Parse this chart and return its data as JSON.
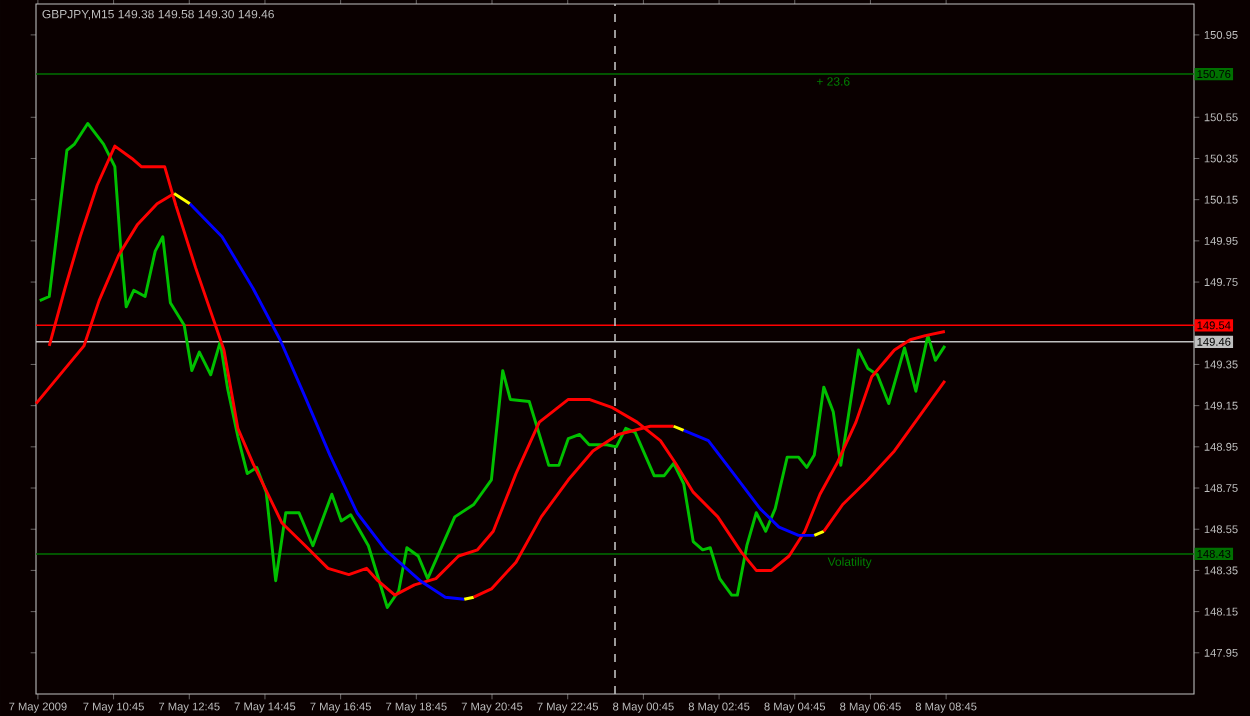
{
  "chart_data": {
    "type": "line",
    "title": "GBPJPY,M15  149.38 149.58 149.30 149.46",
    "line_style": "solid",
    "xlim": [
      "2009-05-07T08:42",
      "2009-05-08T15:18"
    ],
    "ylim": [
      147.75,
      151.1
    ],
    "xticks": [
      {
        "value": "2009-05-07T08:45",
        "label": "7 May 2009"
      },
      {
        "value": "2009-05-07T10:45",
        "label": "7 May 10:45"
      },
      {
        "value": "2009-05-07T12:45",
        "label": "7 May 12:45"
      },
      {
        "value": "2009-05-07T14:45",
        "label": "7 May 14:45"
      },
      {
        "value": "2009-05-07T16:45",
        "label": "7 May 16:45"
      },
      {
        "value": "2009-05-07T18:45",
        "label": "7 May 18:45"
      },
      {
        "value": "2009-05-07T20:45",
        "label": "7 May 20:45"
      },
      {
        "value": "2009-05-07T22:45",
        "label": "7 May 22:45"
      },
      {
        "value": "2009-05-08T00:45",
        "label": "8 May 00:45"
      },
      {
        "value": "2009-05-08T02:45",
        "label": "8 May 02:45"
      },
      {
        "value": "2009-05-08T04:45",
        "label": "8 May 04:45"
      },
      {
        "value": "2009-05-08T06:45",
        "label": "8 May 06:45"
      },
      {
        "value": "2009-05-08T08:45",
        "label": "8 May 08:45"
      }
    ],
    "yticks": [
      147.95,
      148.15,
      148.35,
      148.55,
      148.75,
      148.95,
      149.15,
      149.35,
      149.75,
      149.95,
      150.15,
      150.35,
      150.55,
      150.95
    ],
    "ref_lines": [
      {
        "axis": "y",
        "value": 150.76,
        "label": "150.76",
        "color": "#007000"
      },
      {
        "axis": "y",
        "value": 149.54,
        "label": "149.54",
        "color": "#ff0000"
      },
      {
        "axis": "y",
        "value": 149.46,
        "label": "149.46",
        "color": "#c0c0c0"
      },
      {
        "axis": "y",
        "value": 148.43,
        "label": "148.43",
        "color": "#007000"
      },
      {
        "axis": "x",
        "value": "2009-05-08T00:00",
        "color": "#c0c0c0",
        "line_style": "dashed"
      }
    ],
    "annotations": [
      {
        "text": "+ 23.6",
        "x": "2009-05-08T05:46",
        "y": 150.76
      },
      {
        "text": "Volatility",
        "x": "2009-05-08T06:12",
        "y": 148.43
      }
    ],
    "series": [
      {
        "color": "#00c000",
        "x": [
          "2009-05-07T08:48",
          "2009-05-07T09:03",
          "2009-05-07T09:31",
          "2009-05-07T09:43",
          "2009-05-07T10:04",
          "2009-05-07T10:29",
          "2009-05-07T10:47",
          "2009-05-07T10:56",
          "2009-05-07T11:05",
          "2009-05-07T11:17",
          "2009-05-07T11:35",
          "2009-05-07T11:51",
          "2009-05-07T12:03",
          "2009-05-07T12:15",
          "2009-05-07T12:37",
          "2009-05-07T12:49",
          "2009-05-07T13:01",
          "2009-05-07T13:19",
          "2009-05-07T13:34",
          "2009-05-07T13:46",
          "2009-05-07T14:02",
          "2009-05-07T14:17",
          "2009-05-07T14:32",
          "2009-05-07T14:47",
          "2009-05-07T15:02",
          "2009-05-07T15:18",
          "2009-05-07T15:39",
          "2009-05-07T16:01",
          "2009-05-07T16:31",
          "2009-05-07T16:46",
          "2009-05-07T17:01",
          "2009-05-07T17:29",
          "2009-05-07T17:59",
          "2009-05-07T18:17",
          "2009-05-07T18:30",
          "2009-05-07T18:48",
          "2009-05-07T19:03",
          "2009-05-07T19:46",
          "2009-05-07T20:16",
          "2009-05-07T20:44",
          "2009-05-07T21:02",
          "2009-05-07T21:14",
          "2009-05-07T21:44",
          "2009-05-07T22:15",
          "2009-05-07T22:31",
          "2009-05-07T22:46",
          "2009-05-07T23:04",
          "2009-05-07T23:19",
          "2009-05-07T23:47",
          "2009-05-08T00:02",
          "2009-05-08T00:17",
          "2009-05-08T00:32",
          "2009-05-08T01:02",
          "2009-05-08T01:18",
          "2009-05-08T01:33",
          "2009-05-08T01:49",
          "2009-05-08T02:04",
          "2009-05-08T02:19",
          "2009-05-08T02:31",
          "2009-05-08T02:46",
          "2009-05-08T03:05",
          "2009-05-08T03:14",
          "2009-05-08T03:29",
          "2009-05-08T03:44",
          "2009-05-08T03:59",
          "2009-05-08T04:14",
          "2009-05-08T04:33",
          "2009-05-08T04:51",
          "2009-05-08T05:04",
          "2009-05-08T05:16",
          "2009-05-08T05:31",
          "2009-05-08T05:46",
          "2009-05-08T05:58",
          "2009-05-08T06:26",
          "2009-05-08T06:41",
          "2009-05-08T06:56",
          "2009-05-08T07:14",
          "2009-05-08T07:39",
          "2009-05-08T07:57",
          "2009-05-08T08:16",
          "2009-05-08T08:28",
          "2009-05-08T08:43"
        ],
        "values": [
          149.66,
          149.68,
          150.39,
          150.42,
          150.52,
          150.42,
          150.31,
          149.93,
          149.63,
          149.71,
          149.68,
          149.9,
          149.97,
          149.65,
          149.54,
          149.32,
          149.41,
          149.3,
          149.46,
          149.23,
          149.0,
          148.82,
          148.85,
          148.73,
          148.3,
          148.63,
          148.63,
          148.47,
          148.72,
          148.59,
          148.62,
          148.47,
          148.17,
          148.25,
          148.46,
          148.42,
          148.31,
          148.61,
          148.67,
          148.79,
          149.32,
          149.18,
          149.17,
          148.86,
          148.86,
          148.99,
          149.01,
          148.96,
          148.96,
          148.95,
          149.04,
          149.02,
          148.81,
          148.81,
          148.87,
          148.77,
          148.49,
          148.45,
          148.46,
          148.31,
          148.23,
          148.23,
          148.47,
          148.63,
          148.54,
          148.65,
          148.9,
          148.9,
          148.85,
          148.91,
          149.24,
          149.12,
          148.86,
          149.42,
          149.33,
          149.3,
          149.16,
          149.43,
          149.22,
          149.49,
          149.37,
          149.44
        ]
      },
      {
        "color": "#ff0000",
        "x": [
          "2009-05-07T09:03",
          "2009-05-07T09:28",
          "2009-05-07T09:52",
          "2009-05-07T10:19",
          "2009-05-07T10:47",
          "2009-05-07T11:14",
          "2009-05-07T11:29",
          "2009-05-07T12:06",
          "2009-05-07T12:24",
          "2009-05-07T12:55",
          "2009-05-07T13:40",
          "2009-05-07T14:02",
          "2009-05-07T14:26",
          "2009-05-07T14:53",
          "2009-05-07T15:12",
          "2009-05-07T15:49",
          "2009-05-07T16:25",
          "2009-05-07T16:58",
          "2009-05-07T17:26",
          "2009-05-07T17:44",
          "2009-05-07T18:11",
          "2009-05-07T18:42",
          "2009-05-07T19:16",
          "2009-05-07T19:52",
          "2009-05-07T20:22",
          "2009-05-07T20:47",
          "2009-05-07T21:23",
          "2009-05-07T22:00",
          "2009-05-07T22:46",
          "2009-05-07T23:19",
          "2009-05-07T23:56",
          "2009-05-08T00:35",
          "2009-05-08T01:12",
          "2009-05-08T01:36",
          "2009-05-08T02:04",
          "2009-05-08T02:43",
          "2009-05-08T03:20",
          "2009-05-08T03:44",
          "2009-05-08T04:08",
          "2009-05-08T04:36",
          "2009-05-08T05:01",
          "2009-05-08T05:25",
          "2009-05-08T05:52",
          "2009-05-08T06:22",
          "2009-05-08T06:47",
          "2009-05-08T07:23",
          "2009-05-08T07:48",
          "2009-05-08T08:12",
          "2009-05-08T08:43"
        ],
        "values": [
          149.44,
          149.72,
          149.97,
          150.22,
          150.41,
          150.35,
          150.31,
          150.31,
          150.12,
          149.82,
          149.42,
          149.04,
          148.87,
          148.7,
          148.58,
          148.47,
          148.36,
          148.33,
          148.36,
          148.3,
          148.23,
          148.28,
          148.31,
          148.42,
          148.45,
          148.54,
          148.82,
          149.07,
          149.18,
          149.18,
          149.14,
          149.07,
          148.98,
          148.87,
          148.73,
          148.61,
          148.44,
          148.35,
          148.35,
          148.42,
          148.54,
          148.72,
          148.87,
          149.07,
          149.29,
          149.42,
          149.47,
          149.49,
          149.51
        ]
      },
      {
        "color": "#ff0000",
        "x": [
          "2009-05-07T08:42",
          "2009-05-07T09:58",
          "2009-05-07T10:22",
          "2009-05-07T10:53",
          "2009-05-07T11:23",
          "2009-05-07T11:54",
          "2009-05-07T12:21"
        ],
        "values": [
          149.16,
          149.44,
          149.66,
          149.88,
          150.03,
          150.13,
          150.18
        ]
      },
      {
        "color": "#ffff00",
        "x": [
          "2009-05-07T12:21",
          "2009-05-07T12:46"
        ],
        "values": [
          150.18,
          150.13
        ]
      },
      {
        "color": "#0000ff",
        "x": [
          "2009-05-07T12:46",
          "2009-05-07T13:37",
          "2009-05-07T14:26",
          "2009-05-07T15:09",
          "2009-05-07T15:49",
          "2009-05-07T16:28",
          "2009-05-07T17:11",
          "2009-05-07T17:56",
          "2009-05-07T18:51",
          "2009-05-07T19:31",
          "2009-05-07T20:01"
        ],
        "values": [
          150.13,
          149.97,
          149.72,
          149.47,
          149.19,
          148.91,
          148.63,
          148.45,
          148.3,
          148.22,
          148.21
        ]
      },
      {
        "color": "#ffff00",
        "x": [
          "2009-05-07T20:01",
          "2009-05-07T20:16"
        ],
        "values": [
          148.21,
          148.22
        ]
      },
      {
        "color": "#ff0000",
        "x": [
          "2009-05-07T20:16",
          "2009-05-07T20:44",
          "2009-05-07T21:23",
          "2009-05-07T22:03",
          "2009-05-07T22:46",
          "2009-05-07T23:25",
          "2009-05-08T00:05",
          "2009-05-08T00:56",
          "2009-05-08T01:33"
        ],
        "values": [
          148.22,
          148.26,
          148.39,
          148.61,
          148.79,
          148.93,
          149.01,
          149.05,
          149.05
        ]
      },
      {
        "color": "#ffff00",
        "x": [
          "2009-05-08T01:33",
          "2009-05-08T01:49"
        ],
        "values": [
          149.05,
          149.03
        ]
      },
      {
        "color": "#0000ff",
        "x": [
          "2009-05-08T01:49",
          "2009-05-08T02:28",
          "2009-05-08T03:08",
          "2009-05-08T03:50",
          "2009-05-08T04:20",
          "2009-05-08T04:51",
          "2009-05-08T05:16"
        ],
        "values": [
          149.03,
          148.98,
          148.82,
          148.65,
          148.56,
          148.52,
          148.52
        ]
      },
      {
        "color": "#ffff00",
        "x": [
          "2009-05-08T05:16",
          "2009-05-08T05:31"
        ],
        "values": [
          148.52,
          148.54
        ]
      },
      {
        "color": "#ff0000",
        "x": [
          "2009-05-08T05:31",
          "2009-05-08T06:01",
          "2009-05-08T06:41",
          "2009-05-08T07:23",
          "2009-05-08T08:03",
          "2009-05-08T08:43"
        ],
        "values": [
          148.54,
          148.67,
          148.79,
          148.93,
          149.1,
          149.27
        ]
      }
    ]
  }
}
